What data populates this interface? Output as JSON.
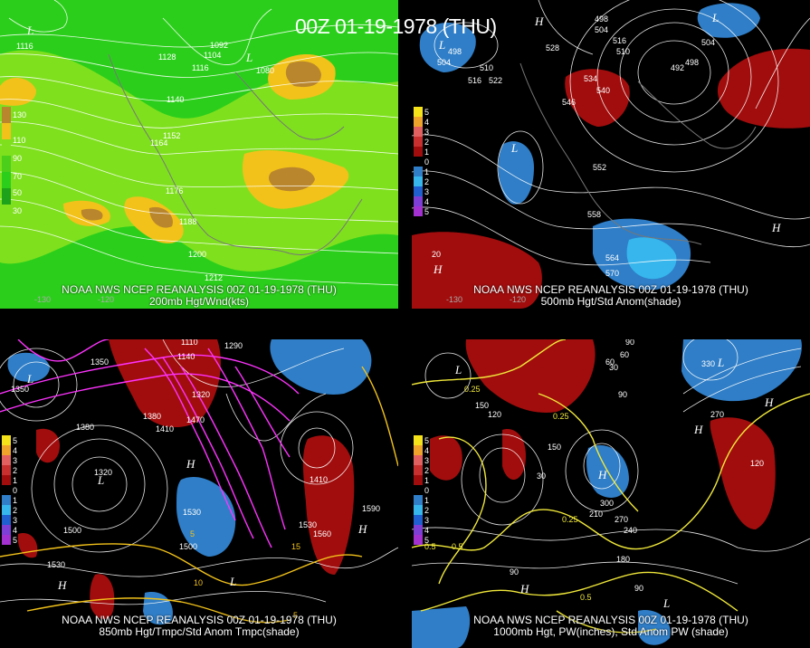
{
  "title": "00Z 01-19-1978 (THU)",
  "colors": {
    "wind_light": "#2bcf1b",
    "wind_mid": "#7fe01e",
    "wind_yellow": "#f2c21a",
    "wind_brown": "#b9862d",
    "anom_pos": "#a10d0d",
    "anom_neg": "#2f7ec7",
    "anom_neg_strong": "#36b6ec",
    "temp_contour": "#ff33ff",
    "pw_contour": "#f0e83a"
  },
  "panels": [
    {
      "line1": "NOAA NWS NCEP REANALYSIS 00Z 01-19-1978 (THU)",
      "line2": "200mb Hgt/Wnd(kts)",
      "legend": [
        "130",
        "110",
        "90",
        "70",
        "50",
        "30"
      ],
      "contour_labels": [
        "1116",
        "1128",
        "1092",
        "1104",
        "1116",
        "1080",
        "1140",
        "1152",
        "1164",
        "1176",
        "1188",
        "1200",
        "1212"
      ],
      "lon_labels": [
        "-130",
        "-120"
      ],
      "pressure_centers": [
        "L",
        "L"
      ]
    },
    {
      "line1": "NOAA NWS NCEP REANALYSIS 00Z 01-19-1978 (THU)",
      "line2": "500mb Hgt/Std Anom(shade)",
      "legend": [
        "5",
        "4",
        "3",
        "2",
        "1",
        "0",
        "1",
        "2",
        "3",
        "4",
        "5"
      ],
      "contour_labels": [
        "498",
        "504",
        "510",
        "516",
        "522",
        "528",
        "534",
        "540",
        "546",
        "552",
        "558",
        "564",
        "570",
        "516",
        "498",
        "504",
        "510",
        "492",
        "498",
        "504",
        "20"
      ],
      "lon_labels": [
        "-130",
        "-120"
      ],
      "pressure_centers": [
        "L",
        "L",
        "L",
        "H",
        "H",
        "H"
      ]
    },
    {
      "line1": "NOAA NWS NCEP REANALYSIS 00Z 01-19-1978 (THU)",
      "line2": "850mb Hgt/Tmpc/Std Anom Tmpc(shade)",
      "legend": [
        "5",
        "4",
        "3",
        "2",
        "1",
        "0",
        "1",
        "2",
        "3",
        "4",
        "5"
      ],
      "contour_labels": [
        "1110",
        "1290",
        "1350",
        "1140",
        "1380",
        "1410",
        "1470",
        "1320",
        "1350",
        "1380",
        "1320",
        "1500",
        "1530",
        "1410",
        "1590",
        "1530",
        "1560",
        "1500",
        "1530",
        "5",
        "10",
        "15",
        "5"
      ],
      "lon_labels": [],
      "pressure_centers": [
        "L",
        "L",
        "H",
        "H",
        "H",
        "L"
      ]
    },
    {
      "line1": "NOAA NWS NCEP REANALYSIS 00Z 01-19-1978 (THU)",
      "line2": "1000mb Hgt, PW(inches), Std Anom PW (shade)",
      "legend": [
        "5",
        "4",
        "3",
        "2",
        "1",
        "0",
        "1",
        "2",
        "3",
        "4",
        "5"
      ],
      "contour_labels": [
        "0.25",
        "0.25",
        "0.25",
        "0.5",
        "0.5",
        "0.5",
        "90",
        "60",
        "30",
        "150",
        "120",
        "210",
        "270",
        "300",
        "240",
        "180",
        "90",
        "90",
        "150",
        "30",
        "60",
        "120",
        "90",
        "270",
        "330"
      ],
      "lon_labels": [],
      "pressure_centers": [
        "L",
        "H",
        "H",
        "L",
        "H",
        "L",
        "H"
      ]
    }
  ]
}
